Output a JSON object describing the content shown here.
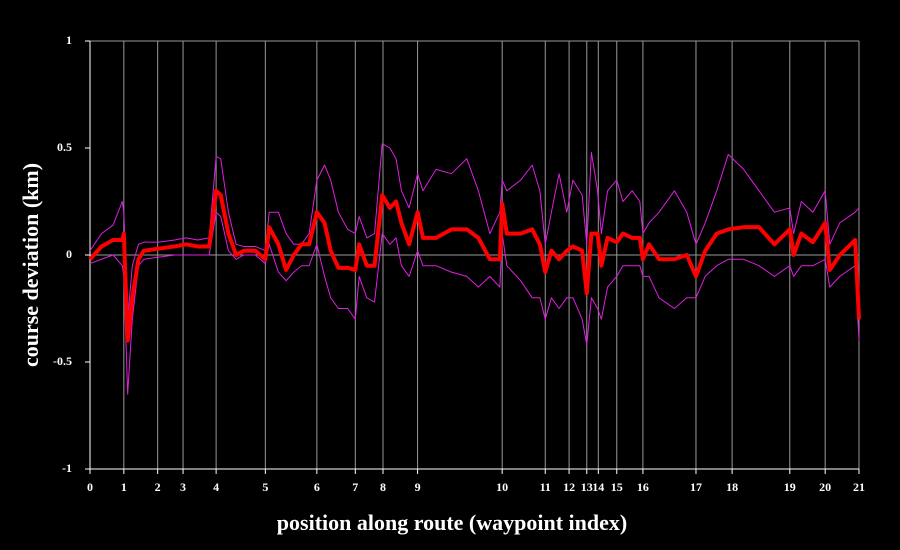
{
  "chart_data": {
    "type": "line",
    "x_label": "position along route (waypoint index)",
    "y_label": "course deviation (km)",
    "xlim": [
      0,
      100
    ],
    "ylim": [
      -1,
      1
    ],
    "yticks": [
      1,
      0.5,
      0,
      -0.5,
      -1
    ],
    "xticks": [
      {
        "value": 0,
        "label": "0"
      },
      {
        "value": 4.4,
        "label": "1"
      },
      {
        "value": 8.8,
        "label": "2"
      },
      {
        "value": 12.1,
        "label": "3"
      },
      {
        "value": 16.4,
        "label": "4"
      },
      {
        "value": 22.8,
        "label": "5"
      },
      {
        "value": 29.5,
        "label": "6"
      },
      {
        "value": 34.5,
        "label": "7"
      },
      {
        "value": 38.1,
        "label": "8"
      },
      {
        "value": 42.6,
        "label": "9"
      },
      {
        "value": 53.6,
        "label": "10"
      },
      {
        "value": 59.2,
        "label": "11"
      },
      {
        "value": 62.3,
        "label": "12"
      },
      {
        "value": 64.6,
        "label": "13"
      },
      {
        "value": 66.1,
        "label": "14"
      },
      {
        "value": 68.5,
        "label": "15"
      },
      {
        "value": 71.9,
        "label": "16"
      },
      {
        "value": 78.8,
        "label": "17"
      },
      {
        "value": 83.5,
        "label": "18"
      },
      {
        "value": 91.0,
        "label": "19"
      },
      {
        "value": 95.6,
        "label": "20"
      },
      {
        "value": 100,
        "label": "21"
      }
    ],
    "grid": true,
    "zero_line": true,
    "x": [
      0,
      1.5,
      3,
      4.2,
      4.4,
      4.9,
      5.5,
      6.3,
      7,
      9,
      11,
      12.5,
      14,
      15.5,
      16.4,
      17,
      18,
      19,
      20,
      21.5,
      22.8,
      23.3,
      24.5,
      25.5,
      26.5,
      27.5,
      28.5,
      29.5,
      30.5,
      31.3,
      32.3,
      33.5,
      34.5,
      35,
      36,
      37,
      38,
      39,
      39.8,
      40.5,
      41.5,
      42.6,
      43.3,
      45,
      47,
      49,
      50.5,
      52,
      53.3,
      53.6,
      54.2,
      56,
      57.5,
      58.5,
      59.2,
      60,
      61,
      62,
      62.8,
      64,
      64.6,
      65.2,
      66,
      66.5,
      67.3,
      68.5,
      69.3,
      70.5,
      71.5,
      71.9,
      72.7,
      74,
      76,
      77.6,
      78.8,
      80,
      81.5,
      83,
      85,
      87,
      89,
      91,
      91.5,
      92.5,
      94,
      95.6,
      96.2,
      97.5,
      99.5,
      100
    ],
    "series": [
      {
        "color": "#e01ee0",
        "values": [
          0.02,
          0.1,
          0.14,
          0.25,
          0.2,
          -0.3,
          -0.05,
          0.05,
          0.06,
          0.06,
          0.07,
          0.08,
          0.07,
          0.08,
          0.46,
          0.45,
          0.2,
          0.05,
          0.04,
          0.04,
          0.02,
          0.2,
          0.2,
          0.1,
          0.05,
          0.05,
          0.1,
          0.35,
          0.42,
          0.35,
          0.2,
          0.12,
          0.1,
          0.18,
          0.08,
          0.1,
          0.52,
          0.5,
          0.45,
          0.3,
          0.22,
          0.38,
          0.3,
          0.4,
          0.38,
          0.45,
          0.3,
          0.1,
          0.2,
          0.35,
          0.3,
          0.35,
          0.42,
          0.3,
          0.05,
          0.2,
          0.38,
          0.2,
          0.35,
          0.28,
          0.05,
          0.48,
          0.3,
          0.1,
          0.3,
          0.35,
          0.25,
          0.3,
          0.25,
          0.1,
          0.15,
          0.2,
          0.3,
          0.2,
          0.05,
          0.15,
          0.3,
          0.47,
          0.4,
          0.3,
          0.2,
          0.22,
          0.1,
          0.25,
          0.2,
          0.3,
          0.05,
          0.15,
          0.2,
          0.22
        ]
      },
      {
        "color": "#e01ee0",
        "values": [
          -0.04,
          -0.02,
          0.0,
          -0.05,
          -0.1,
          -0.65,
          -0.3,
          -0.05,
          -0.02,
          -0.01,
          0.0,
          0.0,
          0.0,
          0.0,
          0.2,
          0.18,
          0.02,
          -0.02,
          0.0,
          0.0,
          -0.04,
          0.05,
          -0.08,
          -0.12,
          -0.08,
          -0.05,
          -0.05,
          0.05,
          -0.1,
          -0.2,
          -0.25,
          -0.25,
          -0.3,
          -0.1,
          -0.2,
          -0.22,
          0.1,
          0.05,
          0.08,
          -0.05,
          -0.1,
          0.02,
          -0.05,
          -0.05,
          -0.08,
          -0.1,
          -0.15,
          -0.1,
          -0.15,
          0.1,
          -0.05,
          -0.12,
          -0.2,
          -0.2,
          -0.3,
          -0.2,
          -0.25,
          -0.2,
          -0.2,
          -0.3,
          -0.42,
          -0.2,
          -0.25,
          -0.3,
          -0.15,
          -0.1,
          -0.05,
          -0.05,
          -0.05,
          -0.1,
          -0.1,
          -0.2,
          -0.25,
          -0.2,
          -0.2,
          -0.1,
          -0.05,
          -0.02,
          -0.02,
          -0.05,
          -0.1,
          -0.05,
          -0.1,
          -0.05,
          -0.05,
          -0.02,
          -0.15,
          -0.1,
          -0.05,
          -0.4
        ]
      },
      {
        "color": "#ff0000",
        "values": [
          -0.02,
          0.04,
          0.07,
          0.07,
          0.1,
          -0.4,
          -0.2,
          -0.02,
          0.02,
          0.03,
          0.04,
          0.05,
          0.04,
          0.04,
          0.3,
          0.28,
          0.1,
          0.0,
          0.02,
          0.02,
          -0.02,
          0.13,
          0.05,
          -0.07,
          0.0,
          0.05,
          0.05,
          0.2,
          0.15,
          0.02,
          -0.06,
          -0.06,
          -0.07,
          0.05,
          -0.05,
          -0.05,
          0.28,
          0.22,
          0.25,
          0.15,
          0.05,
          0.2,
          0.08,
          0.08,
          0.12,
          0.12,
          0.08,
          -0.02,
          -0.02,
          0.24,
          0.1,
          0.1,
          0.12,
          0.05,
          -0.08,
          0.02,
          -0.02,
          0.02,
          0.04,
          0.02,
          -0.18,
          0.1,
          0.1,
          -0.05,
          0.08,
          0.06,
          0.1,
          0.08,
          0.08,
          -0.02,
          0.05,
          -0.02,
          -0.02,
          0.0,
          -0.1,
          0.02,
          0.1,
          0.12,
          0.13,
          0.13,
          0.05,
          0.12,
          0.0,
          0.1,
          0.06,
          0.15,
          -0.07,
          0.0,
          0.07,
          -0.3
        ]
      }
    ]
  }
}
